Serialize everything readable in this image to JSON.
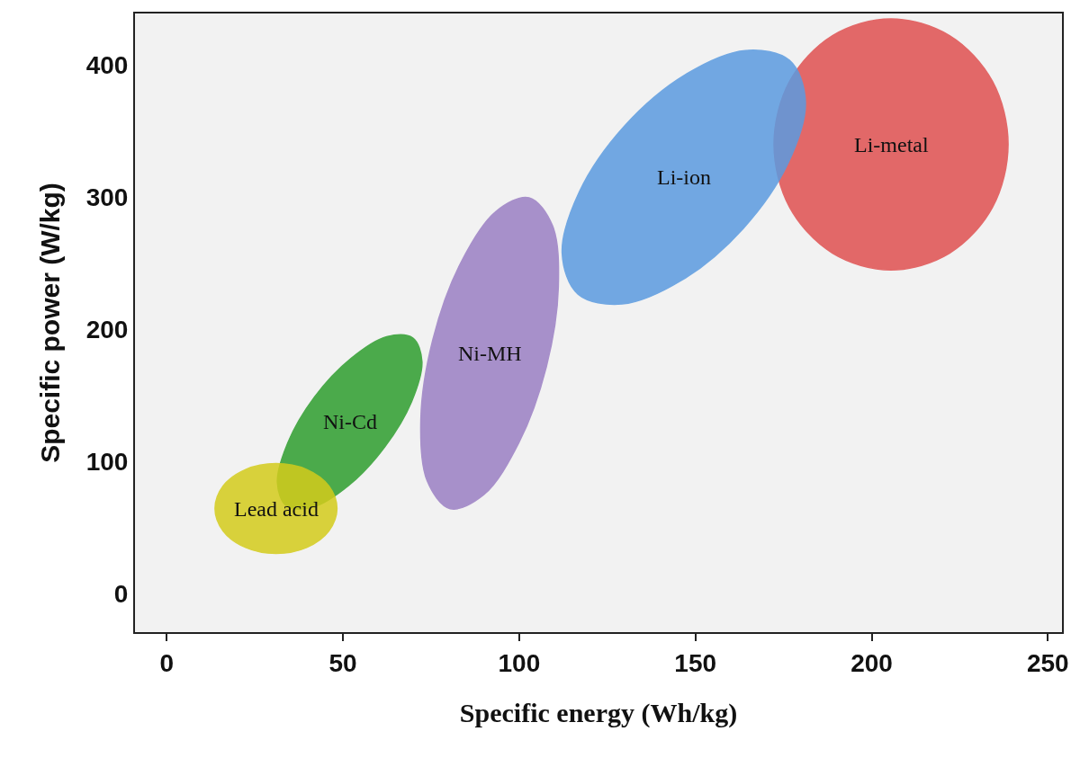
{
  "chart_data": {
    "type": "area",
    "xlabel": "Specific energy (Wh/kg)",
    "ylabel": "Specific power (W/kg)",
    "xlim": [
      -9,
      254
    ],
    "ylim": [
      -29,
      439
    ],
    "xticks": [
      0,
      50,
      100,
      150,
      200,
      250
    ],
    "yticks": [
      0,
      100,
      200,
      300,
      400
    ],
    "grid": false,
    "legend": false,
    "series": [
      {
        "name": "Lead acid",
        "color": "#d4cc1c",
        "x": [
          48.3,
          46,
          39.7,
          31,
          22.4,
          16,
          13.7,
          16,
          22.4,
          31,
          39.7,
          46,
          48.3
        ],
        "values": [
          64.5,
          81.5,
          94,
          98.5,
          94,
          81.5,
          64.5,
          47.5,
          35,
          30.5,
          35,
          47.5,
          64.5
        ]
      },
      {
        "name": "Ni-Cd",
        "color": "#2e9e2e",
        "x": [
          69.8,
          72.4,
          69.5,
          61.9,
          51.6,
          41.4,
          34,
          31.4,
          34.4,
          41.9,
          52.3,
          62.4,
          69.8
        ],
        "values": [
          193.6,
          175.7,
          145.5,
          111.2,
          81.9,
          65.5,
          66.4,
          84.3,
          114.5,
          148.8,
          178.1,
          194.5,
          193.6
        ]
      },
      {
        "name": "Ni-MH",
        "color": "#9b7fc4",
        "x": [
          102.8,
          109.4,
          111.1,
          107.7,
          99.9,
          90,
          80.4,
          73.9,
          72.1,
          75.5,
          83.3,
          93.3,
          102.8
        ],
        "values": [
          299.6,
          278.7,
          231.9,
          171.7,
          114.3,
          75.1,
          64.4,
          85.4,
          132.1,
          192.3,
          249.7,
          289,
          299.6
        ]
      },
      {
        "name": "Li-ion",
        "color": "#5b9be0",
        "x": [
          176.7,
          181.2,
          176.3,
          163.6,
          146.3,
          129.2,
          116.7,
          112.2,
          117.1,
          129.8,
          147.1,
          164.2,
          176.7
        ],
        "values": [
          403.5,
          372.4,
          325.9,
          276.5,
          237.5,
          219.2,
          226.7,
          257.8,
          304.3,
          353.7,
          392.7,
          411,
          403.5
        ]
      },
      {
        "name": "Li-metal",
        "color": "#e05050",
        "x": [
          238.7,
          234.3,
          222.1,
          205.5,
          188.9,
          176.7,
          172.3,
          176.7,
          188.9,
          205.5,
          222.1,
          234.3,
          238.7
        ],
        "values": [
          340,
          387.5,
          422.3,
          435,
          422.3,
          387.5,
          340,
          292.5,
          257.7,
          245,
          257.7,
          292.5,
          340
        ]
      }
    ]
  }
}
